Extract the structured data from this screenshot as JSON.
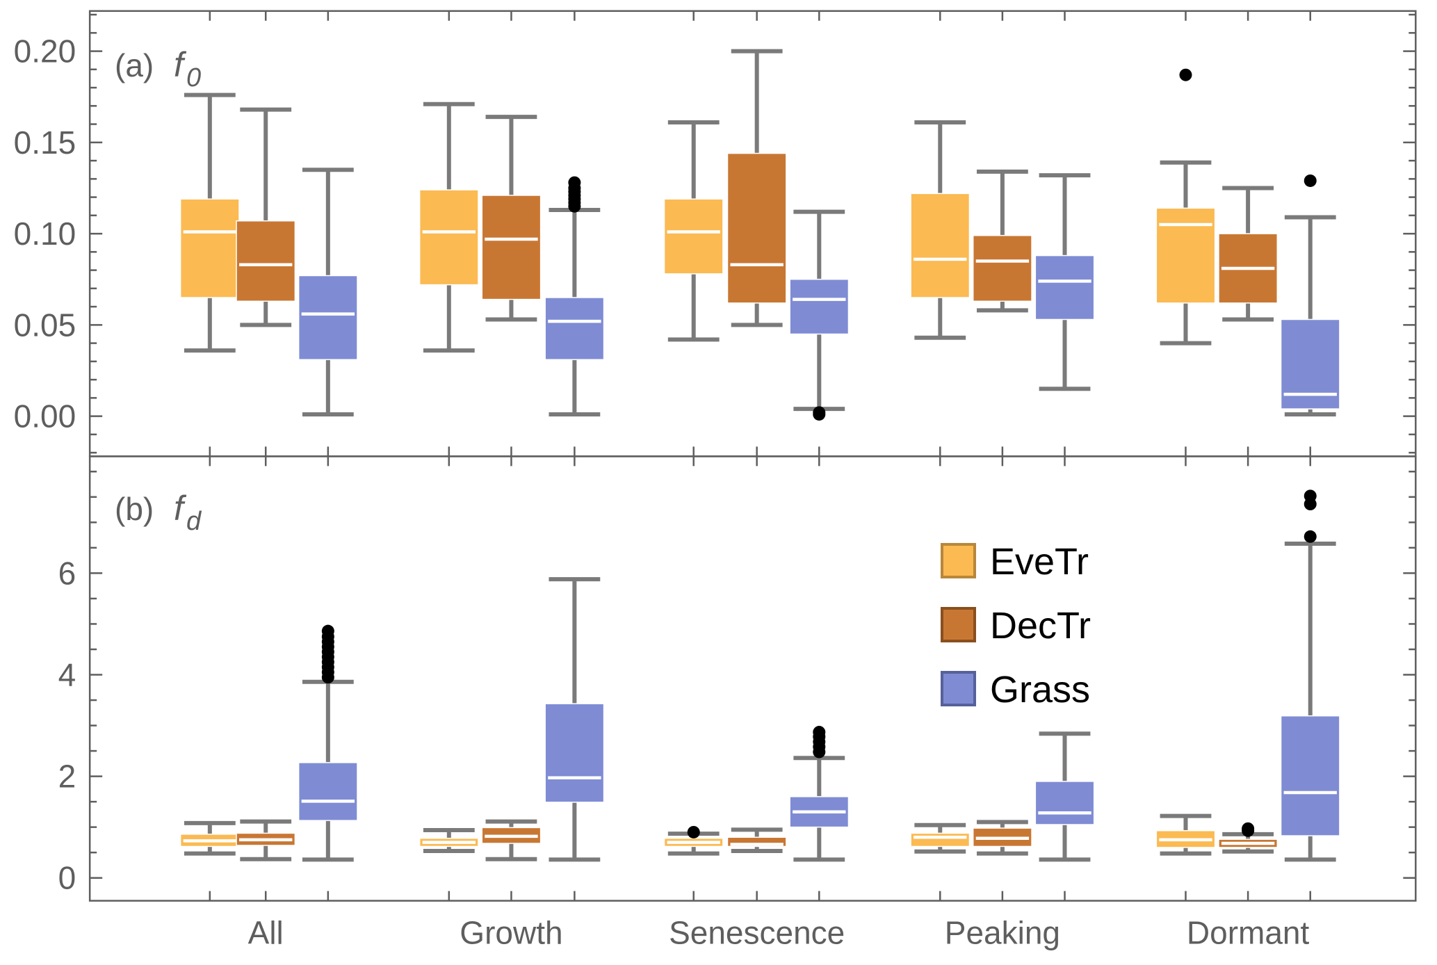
{
  "chart_data": {
    "type": "box",
    "categories": [
      "All",
      "Growth",
      "Senescence",
      "Peaking",
      "Dormant"
    ],
    "legend": {
      "placement": "panel-b center-right",
      "entries": [
        {
          "name": "EveTr",
          "color": "#fbba52",
          "edge": "#b8873a"
        },
        {
          "name": "DecTr",
          "color": "#c87733",
          "edge": "#8a4f1e"
        },
        {
          "name": "Grass",
          "color": "#7f8cd4",
          "edge": "#56609a"
        }
      ]
    },
    "panels": [
      {
        "label": "(a)",
        "variable": "f",
        "subscript": "0",
        "ylim": [
          -0.022,
          0.222
        ],
        "yticks": [
          0.0,
          0.05,
          0.1,
          0.15,
          0.2
        ],
        "ytick_labels": [
          "0.00",
          "0.05",
          "0.10",
          "0.15",
          "0.20"
        ],
        "yminor_step": 0.01,
        "series": [
          {
            "name": "EveTr",
            "boxes": [
              {
                "min": 0.036,
                "q1": 0.065,
                "median": 0.101,
                "q3": 0.119,
                "max": 0.176,
                "outliers": []
              },
              {
                "min": 0.036,
                "q1": 0.072,
                "median": 0.101,
                "q3": 0.124,
                "max": 0.171,
                "outliers": []
              },
              {
                "min": 0.042,
                "q1": 0.078,
                "median": 0.101,
                "q3": 0.119,
                "max": 0.161,
                "outliers": []
              },
              {
                "min": 0.043,
                "q1": 0.065,
                "median": 0.086,
                "q3": 0.122,
                "max": 0.161,
                "outliers": []
              },
              {
                "min": 0.04,
                "q1": 0.062,
                "median": 0.105,
                "q3": 0.114,
                "max": 0.139,
                "outliers": [
                  0.187
                ]
              }
            ]
          },
          {
            "name": "DecTr",
            "boxes": [
              {
                "min": 0.05,
                "q1": 0.063,
                "median": 0.083,
                "q3": 0.107,
                "max": 0.168,
                "outliers": []
              },
              {
                "min": 0.053,
                "q1": 0.064,
                "median": 0.097,
                "q3": 0.121,
                "max": 0.164,
                "outliers": []
              },
              {
                "min": 0.05,
                "q1": 0.062,
                "median": 0.083,
                "q3": 0.144,
                "max": 0.2,
                "outliers": []
              },
              {
                "min": 0.058,
                "q1": 0.063,
                "median": 0.085,
                "q3": 0.099,
                "max": 0.134,
                "outliers": []
              },
              {
                "min": 0.053,
                "q1": 0.062,
                "median": 0.081,
                "q3": 0.1,
                "max": 0.125,
                "outliers": []
              }
            ]
          },
          {
            "name": "Grass",
            "boxes": [
              {
                "min": 0.001,
                "q1": 0.031,
                "median": 0.056,
                "q3": 0.077,
                "max": 0.135,
                "outliers": []
              },
              {
                "min": 0.001,
                "q1": 0.031,
                "median": 0.052,
                "q3": 0.065,
                "max": 0.113,
                "outliers": [
                  0.115,
                  0.117,
                  0.119,
                  0.121,
                  0.123,
                  0.125,
                  0.128
                ]
              },
              {
                "min": 0.004,
                "q1": 0.045,
                "median": 0.064,
                "q3": 0.075,
                "max": 0.112,
                "outliers": [
                  0.001,
                  0.002
                ]
              },
              {
                "min": 0.015,
                "q1": 0.053,
                "median": 0.074,
                "q3": 0.088,
                "max": 0.132,
                "outliers": []
              },
              {
                "min": 0.001,
                "q1": 0.004,
                "median": 0.012,
                "q3": 0.053,
                "max": 0.109,
                "outliers": [
                  0.129
                ]
              }
            ]
          }
        ]
      },
      {
        "label": "(b)",
        "variable": "f",
        "subscript": "d",
        "ylim": [
          -0.45,
          8.3
        ],
        "yticks": [
          0,
          2,
          4,
          6
        ],
        "ytick_labels": [
          "0",
          "2",
          "4",
          "6"
        ],
        "yminor_step": 0.5,
        "series": [
          {
            "name": "EveTr",
            "boxes": [
              {
                "min": 0.48,
                "q1": 0.62,
                "median": 0.73,
                "q3": 0.86,
                "max": 1.08,
                "outliers": []
              },
              {
                "min": 0.53,
                "q1": 0.62,
                "median": 0.7,
                "q3": 0.78,
                "max": 0.94,
                "outliers": []
              },
              {
                "min": 0.48,
                "q1": 0.62,
                "median": 0.7,
                "q3": 0.78,
                "max": 0.87,
                "outliers": [
                  0.9
                ]
              },
              {
                "min": 0.52,
                "q1": 0.62,
                "median": 0.8,
                "q3": 0.88,
                "max": 1.04,
                "outliers": []
              },
              {
                "min": 0.48,
                "q1": 0.6,
                "median": 0.75,
                "q3": 0.93,
                "max": 1.22,
                "outliers": []
              }
            ]
          },
          {
            "name": "DecTr",
            "boxes": [
              {
                "min": 0.37,
                "q1": 0.64,
                "median": 0.75,
                "q3": 0.88,
                "max": 1.11,
                "outliers": []
              },
              {
                "min": 0.37,
                "q1": 0.68,
                "median": 0.82,
                "q3": 0.99,
                "max": 1.11,
                "outliers": []
              },
              {
                "min": 0.53,
                "q1": 0.62,
                "median": 0.66,
                "q3": 0.8,
                "max": 0.95,
                "outliers": []
              },
              {
                "min": 0.48,
                "q1": 0.62,
                "median": 0.78,
                "q3": 0.98,
                "max": 1.1,
                "outliers": []
              },
              {
                "min": 0.52,
                "q1": 0.6,
                "median": 0.68,
                "q3": 0.76,
                "max": 0.86,
                "outliers": [
                  0.93,
                  0.97
                ]
              }
            ]
          },
          {
            "name": "Grass",
            "boxes": [
              {
                "min": 0.36,
                "q1": 1.13,
                "median": 1.51,
                "q3": 2.27,
                "max": 3.86,
                "outliers": [
                  3.95,
                  4.05,
                  4.15,
                  4.25,
                  4.35,
                  4.45,
                  4.55,
                  4.65,
                  4.75,
                  4.86
                ]
              },
              {
                "min": 0.36,
                "q1": 1.49,
                "median": 1.97,
                "q3": 3.43,
                "max": 5.88,
                "outliers": []
              },
              {
                "min": 0.36,
                "q1": 1.0,
                "median": 1.3,
                "q3": 1.6,
                "max": 2.36,
                "outliers": [
                  2.48,
                  2.58,
                  2.68,
                  2.78,
                  2.87
                ]
              },
              {
                "min": 0.36,
                "q1": 1.05,
                "median": 1.28,
                "q3": 1.9,
                "max": 2.84,
                "outliers": []
              },
              {
                "min": 0.36,
                "q1": 0.83,
                "median": 1.68,
                "q3": 3.19,
                "max": 6.58,
                "outliers": [
                  6.72,
                  7.36,
                  7.52
                ]
              }
            ]
          }
        ]
      }
    ]
  }
}
